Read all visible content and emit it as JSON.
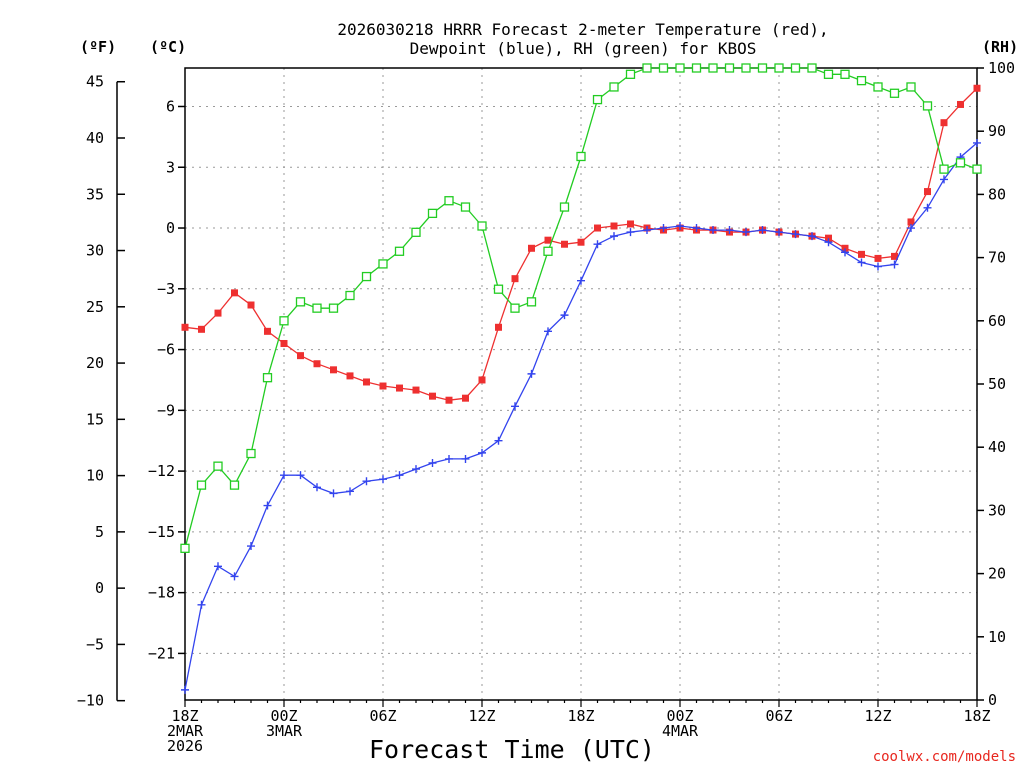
{
  "chart_data": {
    "type": "line",
    "title": [
      "2026030218 HRRR Forecast 2-meter Temperature (red),",
      "Dewpoint (blue), RH (green) for KBOS"
    ],
    "xlabel": "Forecast Time (UTC)",
    "credit": "coolwx.com/models",
    "left_axis_units": [
      "(ºF)",
      "(ºC)"
    ],
    "right_axis_unit": "(RH)",
    "x": [
      0,
      1,
      2,
      3,
      4,
      5,
      6,
      7,
      8,
      9,
      10,
      11,
      12,
      13,
      14,
      15,
      16,
      17,
      18,
      19,
      20,
      21,
      22,
      23,
      24,
      25,
      26,
      27,
      28,
      29,
      30,
      31,
      32,
      33,
      34,
      35,
      36,
      37,
      38,
      39,
      40,
      41,
      42,
      43,
      44,
      45,
      46,
      47,
      48
    ],
    "xlim": [
      0,
      48
    ],
    "x_ticks": [
      {
        "x": 0,
        "lines": [
          "18Z",
          "2MAR",
          "2026"
        ]
      },
      {
        "x": 6,
        "lines": [
          "00Z",
          "3MAR"
        ]
      },
      {
        "x": 12,
        "lines": [
          "06Z"
        ]
      },
      {
        "x": 18,
        "lines": [
          "12Z"
        ]
      },
      {
        "x": 24,
        "lines": [
          "18Z"
        ]
      },
      {
        "x": 30,
        "lines": [
          "00Z",
          "4MAR"
        ]
      },
      {
        "x": 36,
        "lines": [
          "06Z"
        ]
      },
      {
        "x": 42,
        "lines": [
          "12Z"
        ]
      },
      {
        "x": 48,
        "lines": [
          "18Z"
        ]
      }
    ],
    "fahrenheit_ticks": [
      "45",
      "40",
      "35",
      "30",
      "25",
      "20",
      "15",
      "10",
      "5",
      "0",
      "−5",
      "−10"
    ],
    "fahrenheit_values": [
      45,
      40,
      35,
      30,
      25,
      20,
      15,
      10,
      5,
      0,
      -5,
      -10
    ],
    "celsius_ticks": [
      "6",
      "3",
      "0",
      "−3",
      "−6",
      "−9",
      "−12",
      "−15",
      "−18",
      "−21"
    ],
    "celsius_values": [
      6,
      3,
      0,
      -3,
      -6,
      -9,
      -12,
      -15,
      -18,
      -21
    ],
    "celsius_lim": [
      -23.3,
      7.9
    ],
    "rh_ticks": [
      "100",
      "90",
      "80",
      "70",
      "60",
      "50",
      "40",
      "30",
      "20",
      "10",
      "0"
    ],
    "rh_values": [
      100,
      90,
      80,
      70,
      60,
      50,
      40,
      30,
      20,
      10,
      0
    ],
    "rh_lim": [
      0,
      100
    ],
    "series": [
      {
        "name": "Temperature",
        "axis": "celsius",
        "color": "#ee3030",
        "marker": "filled-square",
        "values": [
          -4.9,
          -5.0,
          -4.2,
          -3.2,
          -3.8,
          -5.1,
          -5.7,
          -6.3,
          -6.7,
          -7.0,
          -7.3,
          -7.6,
          -7.8,
          -7.9,
          -8.0,
          -8.3,
          -8.5,
          -8.4,
          -7.5,
          -4.9,
          -2.5,
          -1.0,
          -0.6,
          -0.8,
          -0.7,
          0.0,
          0.1,
          0.2,
          0.0,
          -0.1,
          0.0,
          -0.1,
          -0.1,
          -0.2,
          -0.2,
          -0.1,
          -0.2,
          -0.3,
          -0.4,
          -0.5,
          -1.0,
          -1.3,
          -1.5,
          -1.4,
          0.3,
          1.8,
          5.2,
          6.1,
          6.9
        ]
      },
      {
        "name": "Dewpoint",
        "axis": "celsius",
        "color": "#3344ee",
        "marker": "plus",
        "values": [
          -22.8,
          -18.6,
          -16.7,
          -17.2,
          -15.7,
          -13.7,
          -12.2,
          -12.2,
          -12.8,
          -13.1,
          -13.0,
          -12.5,
          -12.4,
          -12.2,
          -11.9,
          -11.6,
          -11.4,
          -11.4,
          -11.1,
          -10.5,
          -8.8,
          -7.2,
          -5.1,
          -4.3,
          -2.6,
          -0.8,
          -0.4,
          -0.2,
          -0.1,
          0.0,
          0.1,
          0.0,
          -0.1,
          -0.1,
          -0.2,
          -0.1,
          -0.2,
          -0.3,
          -0.4,
          -0.7,
          -1.2,
          -1.7,
          -1.9,
          -1.8,
          0.0,
          1.0,
          2.4,
          3.5,
          4.2
        ]
      },
      {
        "name": "RH",
        "axis": "rh",
        "color": "#22cc22",
        "marker": "open-square",
        "values": [
          24,
          34,
          37,
          34,
          39,
          51,
          60,
          63,
          62,
          62,
          64,
          67,
          69,
          71,
          74,
          77,
          79,
          78,
          75,
          65,
          62,
          63,
          71,
          78,
          86,
          95,
          97,
          99,
          100,
          100,
          100,
          100,
          100,
          100,
          100,
          100,
          100,
          100,
          100,
          99,
          99,
          98,
          97,
          96,
          97,
          94,
          84,
          85,
          84
        ]
      }
    ]
  }
}
